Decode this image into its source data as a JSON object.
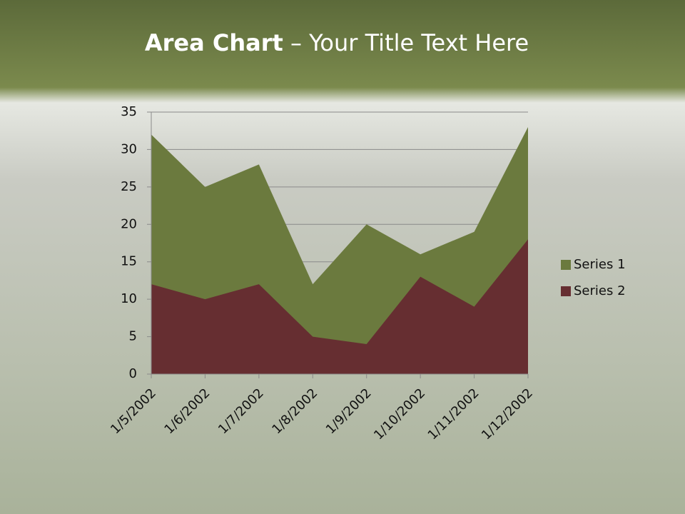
{
  "chart_data": {
    "type": "area",
    "title": [
      "Area Chart",
      "– Your Title Text Here"
    ],
    "categories": [
      "1/5/2002",
      "1/6/2002",
      "1/7/2002",
      "1/8/2002",
      "1/9/2002",
      "1/10/2002",
      "1/11/2002",
      "1/12/2002"
    ],
    "series": [
      {
        "name": "Series 1",
        "color": "#6b7a3e",
        "values": [
          32,
          25,
          28,
          12,
          20,
          16,
          19,
          33
        ]
      },
      {
        "name": "Series 2",
        "color": "#662e31",
        "values": [
          12,
          10,
          12,
          5,
          4,
          13,
          9,
          18
        ]
      }
    ],
    "ylim": [
      0,
      35
    ],
    "yticks": [
      0,
      5,
      10,
      15,
      20,
      25,
      30,
      35
    ],
    "grid": true,
    "legend": "right"
  }
}
